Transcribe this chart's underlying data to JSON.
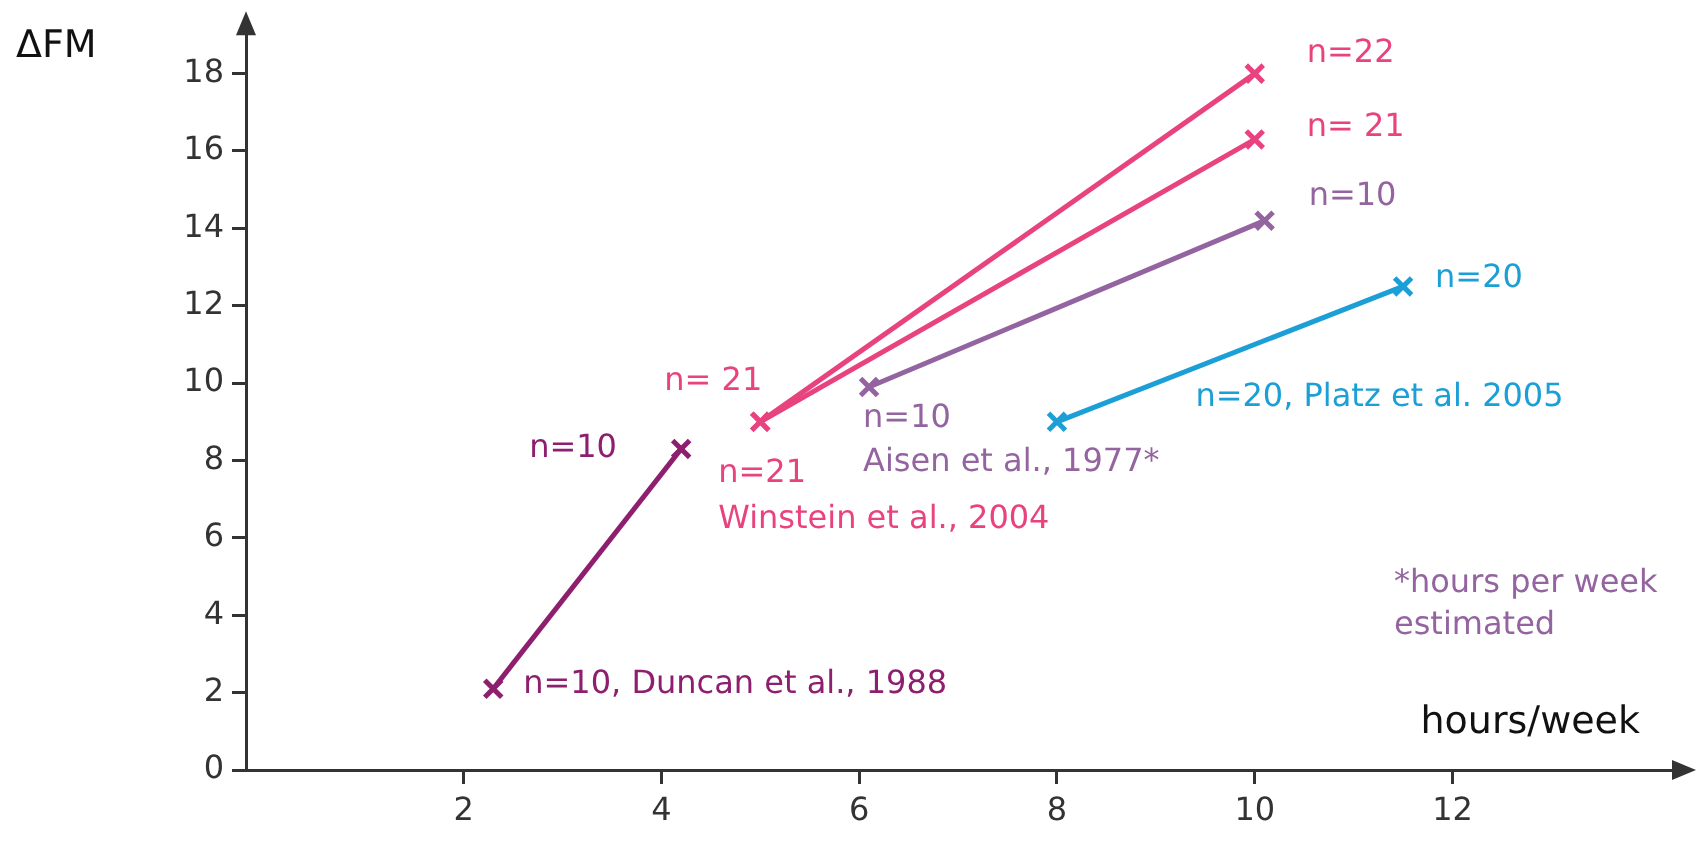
{
  "chart_data": {
    "type": "line",
    "ylabel": "ΔFM",
    "xlabel": "hours/week",
    "xlim": [
      -0.2,
      14.3
    ],
    "ylim": [
      0,
      19.2
    ],
    "xticks": [
      2,
      4,
      6,
      8,
      10,
      12
    ],
    "yticks": [
      0,
      2,
      4,
      6,
      8,
      10,
      12,
      14,
      16,
      18
    ],
    "grid": false,
    "legend": false,
    "marker": "cross",
    "line_style": "solid",
    "series": [
      {
        "color": "#8e1f6f",
        "x": [
          2.3,
          4.2
        ],
        "values": [
          2.1,
          8.3
        ]
      },
      {
        "color": "#e8437e",
        "x": [
          5,
          10
        ],
        "values": [
          9,
          18
        ]
      },
      {
        "color": "#e8437e",
        "x": [
          5,
          10
        ],
        "values": [
          9,
          16.3
        ]
      },
      {
        "color": "#9464a0",
        "x": [
          6.1,
          10.1
        ],
        "values": [
          9.9,
          14.2
        ]
      },
      {
        "color": "#1c9fd6",
        "x": [
          8,
          11.5
        ],
        "values": [
          9,
          12.5
        ]
      }
    ],
    "annotations": [
      {
        "text": "n=22",
        "x": 10,
        "y": 18
      },
      {
        "text": "n= 21",
        "x": 10,
        "y": 16.3
      },
      {
        "text": "n=10",
        "x": 10.1,
        "y": 14.2
      },
      {
        "text": "n=20",
        "x": 11.5,
        "y": 12.5
      },
      {
        "text": "n= 21",
        "x": 5,
        "y": 9
      },
      {
        "text": "n=21",
        "x": 5,
        "y": 9
      },
      {
        "text": "Winstein et al., 2004",
        "x": 5,
        "y": 9
      },
      {
        "text": "n=10",
        "x": 4.2,
        "y": 8.3
      },
      {
        "text": "n=10",
        "x": 6.1,
        "y": 9.9
      },
      {
        "text": "Aisen et al., 1977*",
        "x": 6.1,
        "y": 9.9
      },
      {
        "text": "n=20, Platz et al. 2005",
        "x": 9.4,
        "y": 10.4
      },
      {
        "text": "n=10, Duncan et al., 1988",
        "x": 2.3,
        "y": 2.1
      },
      "*hours per week estimated"
    ]
  }
}
